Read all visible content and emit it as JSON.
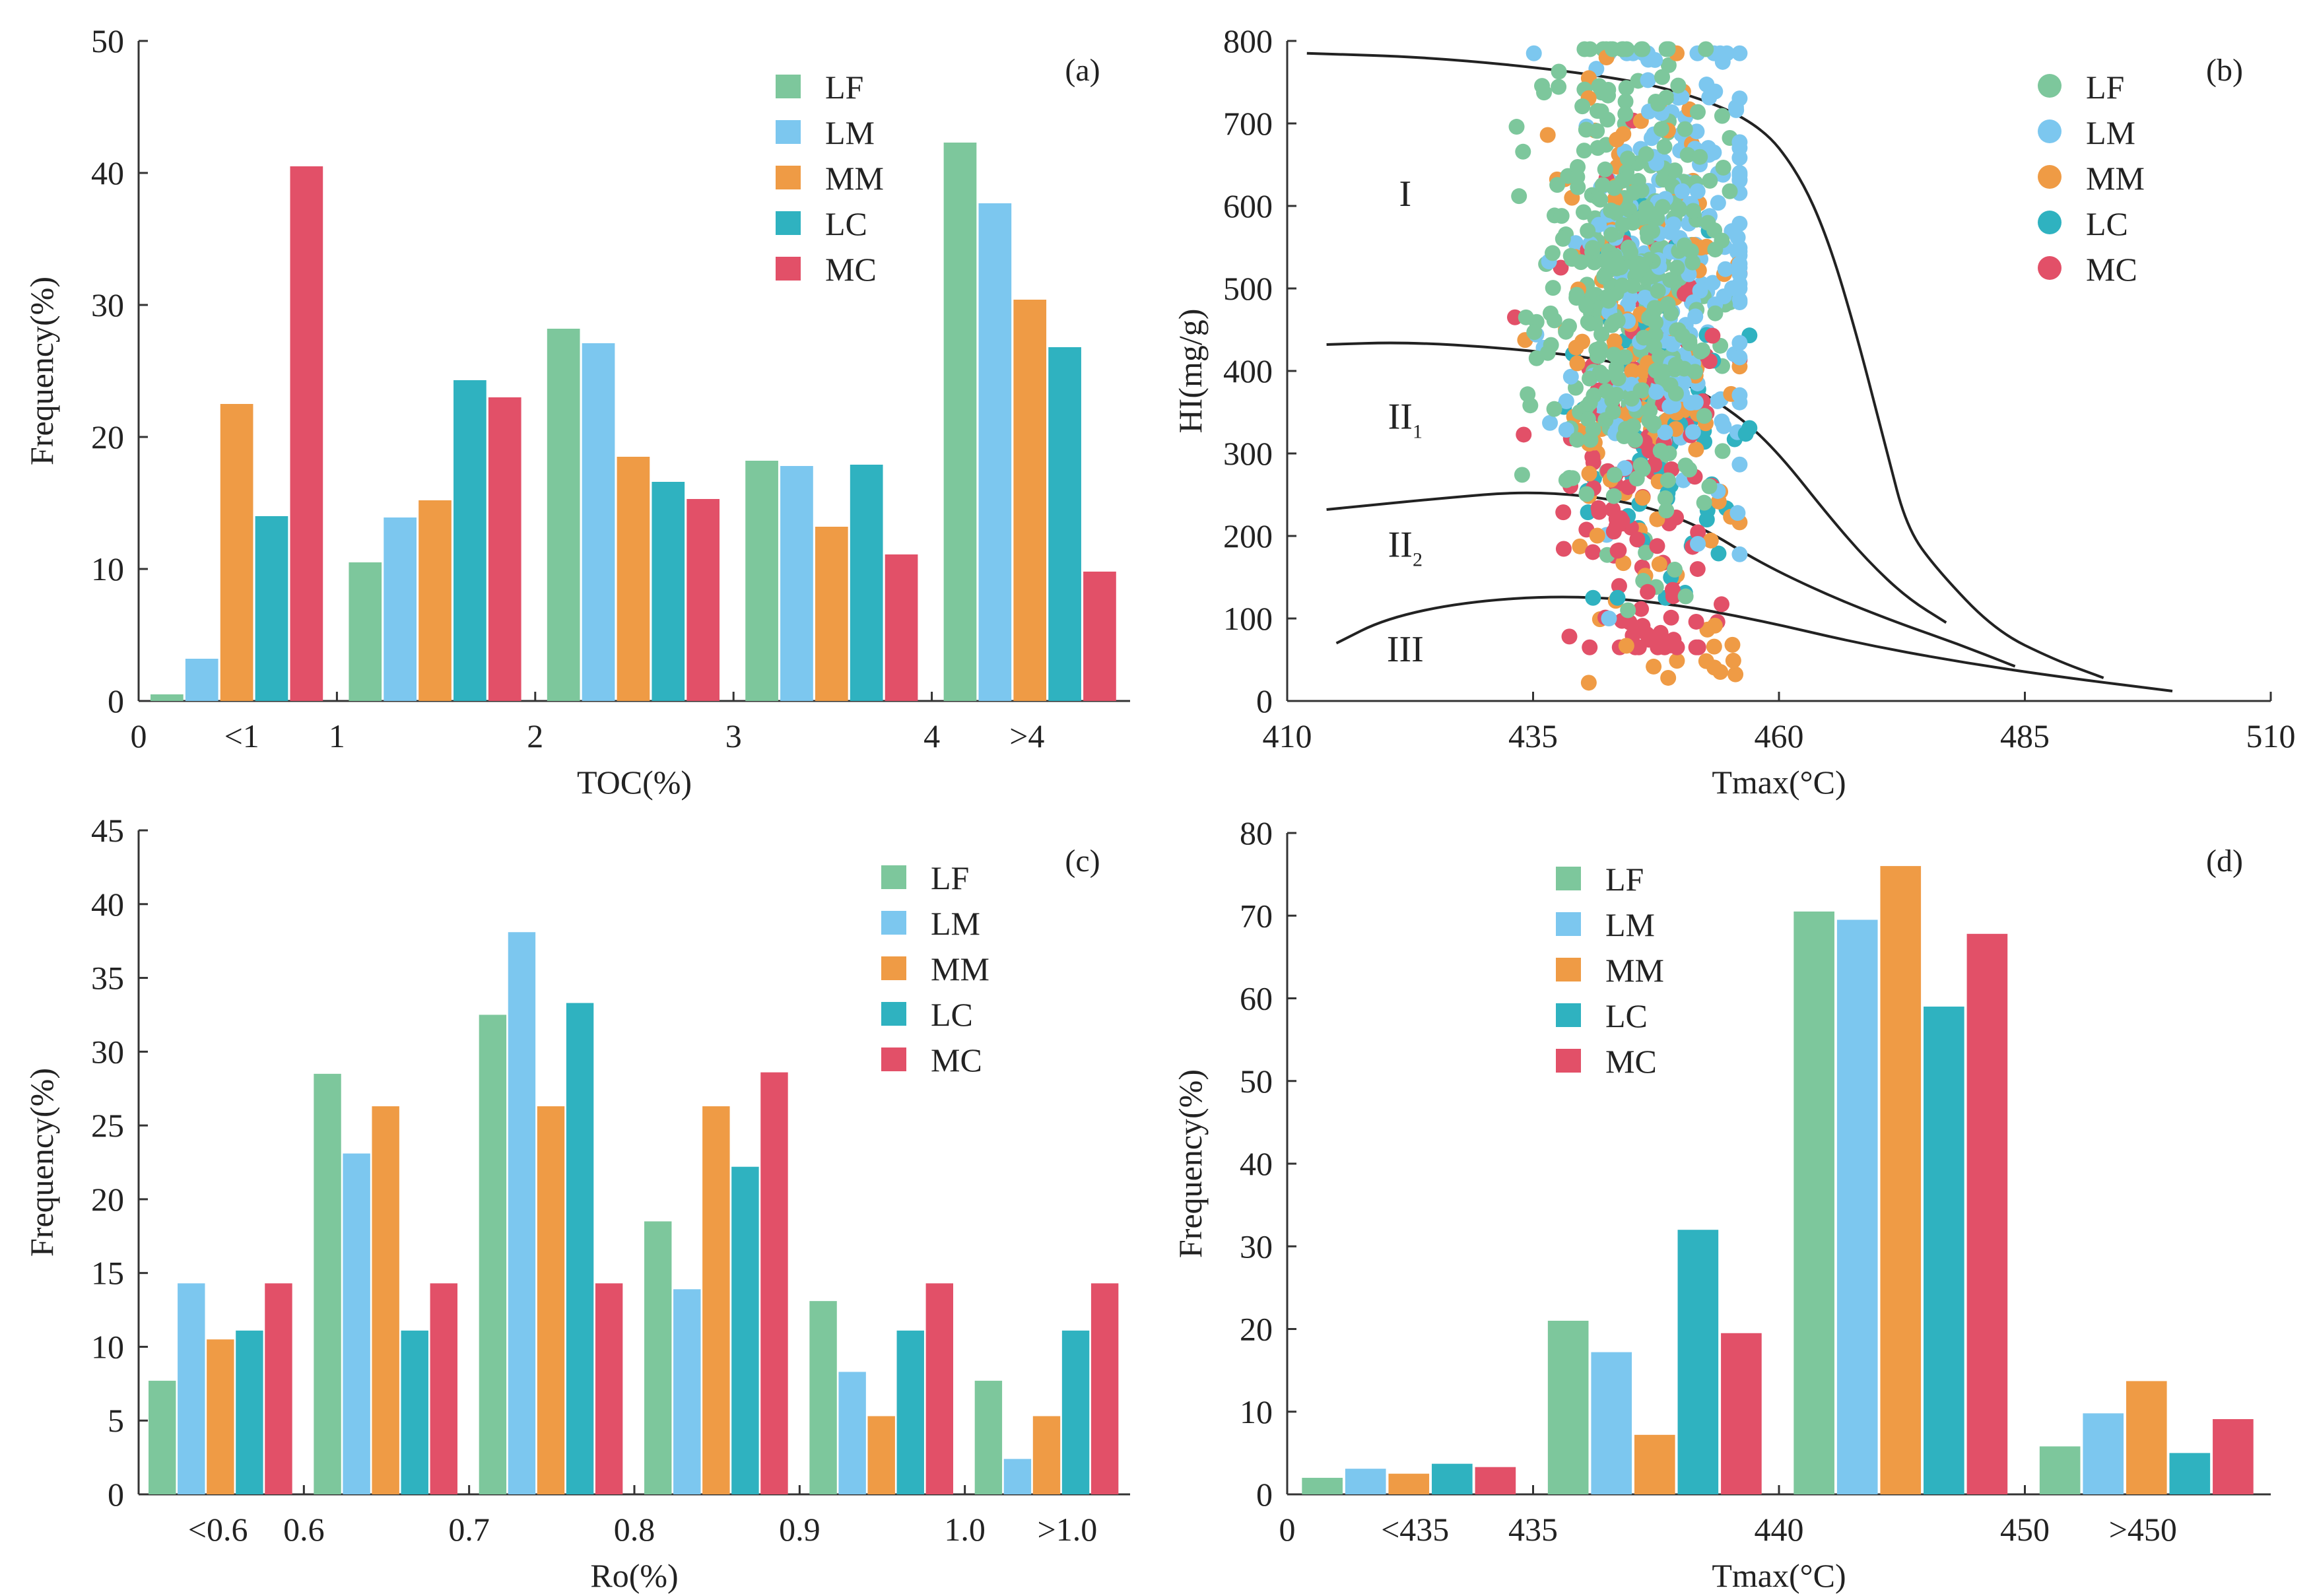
{
  "colors": {
    "LF": "#7dc79c",
    "LM": "#7cc7ef",
    "MM": "#ef9b45",
    "LC": "#2fb2c0",
    "MC": "#e25068"
  },
  "chart_data": [
    {
      "id": "a",
      "type": "bar",
      "panel_label": "(a)",
      "xlabel": "TOC(%)",
      "ylabel": "Frequency(%)",
      "ylim": [
        0,
        50
      ],
      "yticks": [
        "0",
        "10",
        "20",
        "30",
        "40",
        "50"
      ],
      "boundary_labels": [
        "0",
        "1",
        "2",
        "3",
        "4"
      ],
      "categories": [
        "<1",
        "1-2",
        "2-3",
        "3-4",
        ">4"
      ],
      "category_labels": [
        "<1",
        "",
        "",
        "",
        ">4"
      ],
      "legend": [
        "LF",
        "LM",
        "MM",
        "LC",
        "MC"
      ],
      "series": [
        {
          "name": "LF",
          "values": [
            0.5,
            10.5,
            28.2,
            18.2,
            42.3
          ]
        },
        {
          "name": "LM",
          "values": [
            3.2,
            13.9,
            27.1,
            17.8,
            37.7
          ]
        },
        {
          "name": "MM",
          "values": [
            22.5,
            15.2,
            18.5,
            13.2,
            30.4
          ]
        },
        {
          "name": "LC",
          "values": [
            14.0,
            24.3,
            16.6,
            17.9,
            26.8
          ]
        },
        {
          "name": "MC",
          "values": [
            40.5,
            23.0,
            15.3,
            11.1,
            9.8
          ]
        }
      ]
    },
    {
      "id": "b",
      "type": "scatter",
      "panel_label": "(b)",
      "xlabel": "Tmax(°C)",
      "ylabel": "HI(mg/g)",
      "xlim": [
        410,
        510
      ],
      "ylim": [
        0,
        800
      ],
      "xticks": [
        "410",
        "435",
        "460",
        "485",
        "510"
      ],
      "yticks": [
        "0",
        "100",
        "200",
        "300",
        "400",
        "500",
        "600",
        "700",
        "800"
      ],
      "legend": [
        "LF",
        "LM",
        "MM",
        "LC",
        "MC"
      ],
      "zones": [
        {
          "label": "I",
          "at": [
            422,
            600
          ]
        },
        {
          "label": "II",
          "sub": "1",
          "at": [
            422,
            330
          ]
        },
        {
          "label": "II",
          "sub": "2",
          "at": [
            422,
            175
          ]
        },
        {
          "label": "III",
          "at": [
            422,
            48
          ]
        }
      ],
      "boundaries": [
        {
          "name": "I/II1",
          "points": [
            [
              412,
              785
            ],
            [
              425,
              780
            ],
            [
              440,
              762
            ],
            [
              450,
              740
            ],
            [
              458,
              700
            ],
            [
              462,
              640
            ],
            [
              465,
              560
            ],
            [
              468,
              440
            ],
            [
              471,
              300
            ],
            [
              473,
              210
            ],
            [
              476,
              160
            ],
            [
              482,
              85
            ],
            [
              488,
              50
            ],
            [
              493,
              28
            ]
          ]
        },
        {
          "name": "II1/II2",
          "points": [
            [
              414,
              432
            ],
            [
              422,
              435
            ],
            [
              432,
              428
            ],
            [
              442,
              415
            ],
            [
              450,
              390
            ],
            [
              456,
              345
            ],
            [
              460,
              300
            ],
            [
              465,
              225
            ],
            [
              469,
              170
            ],
            [
              473,
              125
            ],
            [
              477,
              95
            ]
          ]
        },
        {
          "name": "II2/III",
          "points": [
            [
              414,
              232
            ],
            [
              425,
              245
            ],
            [
              435,
              255
            ],
            [
              445,
              242
            ],
            [
              452,
              212
            ],
            [
              458,
              168
            ],
            [
              465,
              128
            ],
            [
              472,
              95
            ],
            [
              478,
              70
            ],
            [
              484,
              42
            ]
          ]
        },
        {
          "name": "III/lower",
          "points": [
            [
              415,
              70
            ],
            [
              420,
              100
            ],
            [
              428,
              120
            ],
            [
              438,
              128
            ],
            [
              448,
              120
            ],
            [
              458,
              98
            ],
            [
              468,
              70
            ],
            [
              478,
              48
            ],
            [
              488,
              30
            ],
            [
              500,
              12
            ]
          ]
        }
      ],
      "series": [
        {
          "name": "LF",
          "cloud": {
            "x_range": [
              431,
              455
            ],
            "y_range": [
              110,
              790
            ],
            "mode": [
              445,
              520
            ],
            "count": 380
          }
        },
        {
          "name": "LM",
          "cloud": {
            "x_range": [
              430,
              456
            ],
            "y_range": [
              100,
              785
            ],
            "mode": [
              449,
              520
            ],
            "count": 230
          }
        },
        {
          "name": "MM",
          "cloud": {
            "x_range": [
              431,
              456
            ],
            "y_range": [
              20,
              785
            ],
            "mode": [
              446,
              430
            ],
            "count": 150
          }
        },
        {
          "name": "LC",
          "cloud": {
            "x_range": [
              431,
              457
            ],
            "y_range": [
              125,
              720
            ],
            "mode": [
              448,
              330
            ],
            "count": 70
          }
        },
        {
          "name": "MC",
          "cloud": {
            "x_range": [
              431,
              456
            ],
            "y_range": [
              65,
              785
            ],
            "mode": [
              446,
              270
            ],
            "count": 140
          }
        }
      ]
    },
    {
      "id": "c",
      "type": "bar",
      "panel_label": "(c)",
      "xlabel": "Ro(%)",
      "ylabel": "Frequency(%)",
      "ylim": [
        0,
        45
      ],
      "yticks": [
        "0",
        "5",
        "10",
        "15",
        "20",
        "25",
        "30",
        "35",
        "40",
        "45"
      ],
      "boundary_labels": [
        "0.6",
        "0.7",
        "0.8",
        "0.9",
        "1.0"
      ],
      "categories": [
        "<0.6",
        "0.6-0.7",
        "0.7-0.8",
        "0.8-0.9",
        "0.9-1.0",
        ">1.0"
      ],
      "category_labels": [
        "<0.6",
        "",
        "",
        "",
        "",
        ">1.0"
      ],
      "legend": [
        "LF",
        "LM",
        "MM",
        "LC",
        "MC"
      ],
      "series": [
        {
          "name": "LF",
          "values": [
            7.7,
            28.5,
            32.5,
            18.5,
            13.1,
            7.7
          ]
        },
        {
          "name": "LM",
          "values": [
            14.3,
            23.1,
            38.1,
            13.9,
            8.3,
            2.4
          ]
        },
        {
          "name": "MM",
          "values": [
            10.5,
            26.3,
            26.3,
            26.3,
            5.3,
            5.3
          ]
        },
        {
          "name": "LC",
          "values": [
            11.1,
            11.1,
            33.3,
            22.2,
            11.1,
            11.1
          ]
        },
        {
          "name": "MC",
          "values": [
            14.3,
            14.3,
            14.3,
            28.6,
            14.3,
            14.3
          ]
        }
      ]
    },
    {
      "id": "d",
      "type": "bar",
      "panel_label": "(d)",
      "xlabel": "Tmax(°C)",
      "ylabel": "Frequency(%)",
      "ylim": [
        0,
        80
      ],
      "yticks": [
        "0",
        "10",
        "20",
        "30",
        "40",
        "50",
        "60",
        "70",
        "80"
      ],
      "boundary_labels": [
        "0",
        "435",
        "440",
        "450"
      ],
      "categories": [
        "<435",
        "435-440",
        "440-450",
        ">450"
      ],
      "category_labels": [
        "<435",
        "",
        "",
        ">450"
      ],
      "legend": [
        "LF",
        "LM",
        "MM",
        "LC",
        "MC"
      ],
      "series": [
        {
          "name": "LF",
          "values": [
            2.0,
            21.0,
            70.5,
            5.8
          ]
        },
        {
          "name": "LM",
          "values": [
            3.1,
            17.2,
            69.5,
            9.8
          ]
        },
        {
          "name": "MM",
          "values": [
            2.5,
            7.2,
            76.0,
            13.7
          ]
        },
        {
          "name": "LC",
          "values": [
            3.7,
            32.0,
            59.0,
            5.0
          ]
        },
        {
          "name": "MC",
          "values": [
            3.3,
            19.5,
            67.8,
            9.1
          ]
        }
      ]
    }
  ]
}
